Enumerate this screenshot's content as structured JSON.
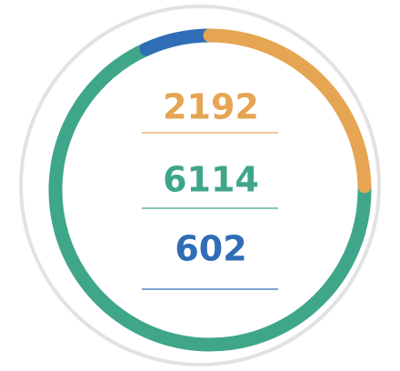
{
  "chart_data": {
    "type": "donut",
    "values": [
      2192,
      6114,
      602
    ],
    "colors": [
      "#e5a552",
      "#3fa68a",
      "#2f6db6"
    ],
    "track_color": "#e2e2e2"
  }
}
